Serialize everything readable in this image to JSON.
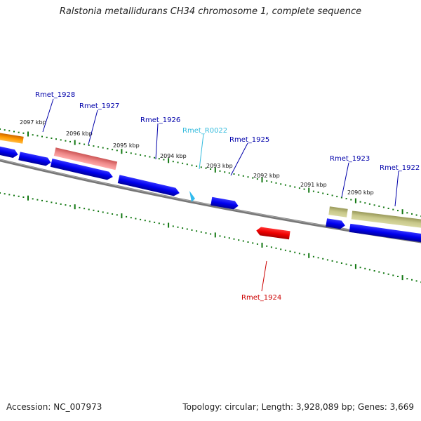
{
  "title": "Ralstonia metallidurans CH34 chromosome 1, complete sequence",
  "footer": {
    "accession": "Accession: NC_007973",
    "summary": "Topology: circular; Length: 3,928,089 bp; Genes: 3,669"
  },
  "kbp_labels": [
    "2097 kbp",
    "2096 kbp",
    "2095 kbp",
    "2094 kbp",
    "2093 kbp",
    "2092 kbp",
    "2091 kbp",
    "2090 kbp"
  ],
  "gene_labels": [
    {
      "name": "Rmet_1928",
      "color": "#0000aa"
    },
    {
      "name": "Rmet_1927",
      "color": "#0000aa"
    },
    {
      "name": "Rmet_1926",
      "color": "#0000aa"
    },
    {
      "name": "Rmet_R0022",
      "color": "#33bbdd"
    },
    {
      "name": "Rmet_1925",
      "color": "#0000aa"
    },
    {
      "name": "Rmet_1923",
      "color": "#0000aa"
    },
    {
      "name": "Rmet_1922",
      "color": "#0000aa"
    },
    {
      "name": "Rmet_1924",
      "color": "#cc0000"
    }
  ],
  "feature_colors": {
    "cds_blue": "#0000ee",
    "pseudo_pink": "#ee8888",
    "orange": "#ff8800",
    "olive": "#bbbb77",
    "rna_cyan": "#33bbee",
    "reverse_red": "#ee0000",
    "backbone": "#777777",
    "tick_green": "#117711"
  }
}
